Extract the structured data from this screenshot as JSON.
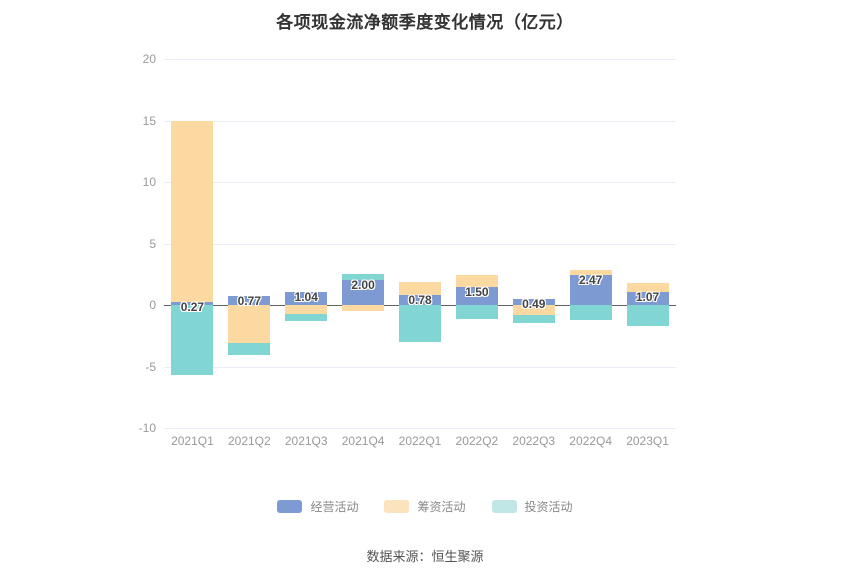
{
  "title": "各项现金流净额季度变化情况（亿元）",
  "source_note": "数据来源：恒生聚源",
  "colors": {
    "operating_blue": "#7D9BD2",
    "financing_orange": "#FCD9A0",
    "investing_teal": "#81D6D3",
    "legend_financing_orange": "#FBE3BE",
    "legend_investing_teal": "#C0E7E5",
    "grid": "#E9EEF8",
    "zero_axis": "#606060",
    "axis_text": "#999999",
    "title_text": "#333333",
    "value_label_text": "#444444"
  },
  "chart_data": {
    "type": "bar",
    "stacked": true,
    "title": "各项现金流净额季度变化情况（亿元）",
    "xlabel": "",
    "ylabel": "",
    "ylim": [
      -10,
      20
    ],
    "yticks": [
      20,
      15,
      10,
      5,
      0,
      -5,
      -10
    ],
    "grid": true,
    "legend_position": "bottom",
    "categories": [
      "2021Q1",
      "2021Q2",
      "2021Q3",
      "2021Q4",
      "2022Q1",
      "2022Q2",
      "2022Q3",
      "2022Q4",
      "2023Q1"
    ],
    "series": [
      {
        "name": "经营活动",
        "color": "#7D9BD2",
        "values": [
          0.27,
          0.77,
          1.04,
          2.0,
          0.78,
          1.5,
          0.49,
          2.47,
          1.07
        ],
        "labels": [
          "0.27",
          "0.77",
          "1.04",
          "2.00",
          "0.78",
          "1.50",
          "0.49",
          "2.47",
          "1.07"
        ]
      },
      {
        "name": "筹资活动",
        "color": "#FCD9A0",
        "values": [
          14.73,
          -3.1,
          -0.7,
          -0.45,
          1.1,
          0.95,
          -0.8,
          0.38,
          0.7
        ]
      },
      {
        "name": "投资活动",
        "color": "#81D6D3",
        "values": [
          -5.7,
          -1.0,
          -0.6,
          0.55,
          -3.0,
          -1.15,
          -0.65,
          -1.2,
          -1.7
        ]
      }
    ]
  },
  "legend": {
    "items": [
      {
        "label": "经营活动",
        "color": "#7D9BD2"
      },
      {
        "label": "筹资活动",
        "color": "#FBE3BE"
      },
      {
        "label": "投资活动",
        "color": "#C0E7E5"
      }
    ]
  }
}
